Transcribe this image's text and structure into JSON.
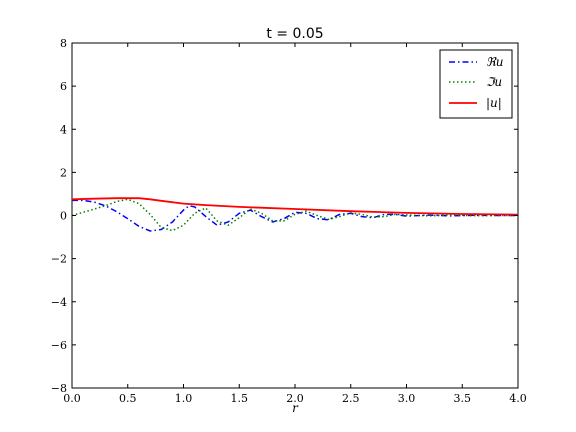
{
  "chart_data": {
    "type": "line",
    "title": "t = 0.05",
    "xlabel": "r",
    "ylabel": "",
    "xlim": [
      0.0,
      4.0
    ],
    "ylim": [
      -8,
      8
    ],
    "xticks": [
      "0.0",
      "0.5",
      "1.0",
      "1.5",
      "2.0",
      "2.5",
      "3.0",
      "3.5",
      "4.0"
    ],
    "yticks": [
      "−8",
      "−6",
      "−4",
      "−2",
      "0",
      "2",
      "4",
      "6",
      "8"
    ],
    "xtick_values": [
      0.0,
      0.5,
      1.0,
      1.5,
      2.0,
      2.5,
      3.0,
      3.5,
      4.0
    ],
    "ytick_values": [
      -8,
      -6,
      -4,
      -2,
      0,
      2,
      4,
      6,
      8
    ],
    "grid": false,
    "legend_position": "top-right",
    "series": [
      {
        "name": "ℜu",
        "color": "#0000ff",
        "style": "dashdot",
        "x": [
          0.0,
          0.1,
          0.2,
          0.3,
          0.4,
          0.5,
          0.6,
          0.7,
          0.8,
          0.9,
          1.0,
          1.05,
          1.1,
          1.2,
          1.3,
          1.4,
          1.5,
          1.6,
          1.7,
          1.8,
          1.9,
          2.0,
          2.1,
          2.2,
          2.3,
          2.4,
          2.5,
          2.6,
          2.7,
          2.8,
          2.9,
          3.0,
          3.2,
          3.4,
          3.6,
          3.8,
          4.0
        ],
        "y": [
          0.7,
          0.7,
          0.62,
          0.45,
          0.18,
          -0.15,
          -0.5,
          -0.72,
          -0.65,
          -0.3,
          0.25,
          0.45,
          0.4,
          -0.05,
          -0.45,
          -0.3,
          0.1,
          0.25,
          -0.05,
          -0.3,
          -0.15,
          0.15,
          0.1,
          -0.15,
          -0.2,
          0.05,
          0.1,
          -0.05,
          -0.1,
          0.05,
          0.05,
          -0.03,
          0.02,
          -0.02,
          0.01,
          0.0,
          0.0
        ]
      },
      {
        "name": "ℑu",
        "color": "#008000",
        "style": "dotted",
        "x": [
          0.0,
          0.1,
          0.2,
          0.3,
          0.4,
          0.5,
          0.6,
          0.7,
          0.8,
          0.9,
          1.0,
          1.1,
          1.2,
          1.3,
          1.4,
          1.5,
          1.6,
          1.7,
          1.8,
          1.9,
          2.0,
          2.1,
          2.2,
          2.3,
          2.4,
          2.5,
          2.6,
          2.7,
          2.8,
          2.9,
          3.0,
          3.2,
          3.4,
          3.6,
          3.8,
          4.0
        ],
        "y": [
          0.0,
          0.15,
          0.3,
          0.45,
          0.65,
          0.75,
          0.55,
          0.05,
          -0.55,
          -0.7,
          -0.45,
          0.1,
          0.35,
          -0.25,
          -0.45,
          -0.1,
          0.3,
          0.1,
          -0.25,
          -0.25,
          0.05,
          0.2,
          0.0,
          -0.18,
          -0.05,
          0.12,
          0.05,
          -0.08,
          -0.05,
          0.05,
          0.03,
          -0.02,
          0.02,
          -0.01,
          0.0,
          0.0
        ]
      },
      {
        "name": "|u|",
        "color": "#ff0000",
        "style": "solid",
        "x": [
          0.0,
          0.2,
          0.4,
          0.6,
          0.7,
          0.8,
          1.0,
          1.2,
          1.5,
          2.0,
          2.5,
          3.0,
          3.5,
          4.0
        ],
        "y": [
          0.75,
          0.78,
          0.8,
          0.8,
          0.75,
          0.68,
          0.55,
          0.48,
          0.4,
          0.3,
          0.2,
          0.12,
          0.07,
          0.04
        ]
      }
    ]
  }
}
